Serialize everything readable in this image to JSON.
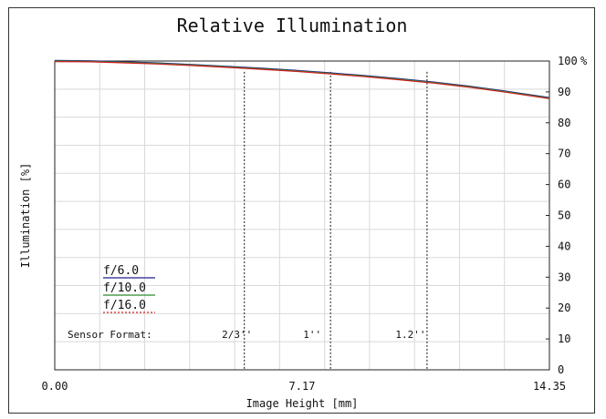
{
  "chart_data": {
    "type": "line",
    "title": "Relative Illumination",
    "xlabel": "Image Height [mm]",
    "ylabel": "Illumination [%]",
    "xlim": [
      0,
      14.35
    ],
    "ylim": [
      0,
      100
    ],
    "x_ticks": [
      "0.00",
      "7.17",
      "14.35"
    ],
    "y_ticks": [
      "0",
      "10",
      "20",
      "30",
      "40",
      "50",
      "60",
      "70",
      "80",
      "90",
      "100"
    ],
    "y_unit": "%",
    "grid": true,
    "legend_placement": "lower-left",
    "x": [
      0,
      1,
      2,
      3,
      4,
      5,
      6,
      7,
      8,
      9,
      10,
      11,
      12,
      13,
      14.35
    ],
    "series": [
      {
        "name": "f/6.0",
        "color": "#1f1f8f",
        "values": [
          100,
          99.9,
          99.6,
          99.2,
          98.7,
          98.1,
          97.5,
          96.8,
          96.0,
          95.1,
          94.1,
          93.0,
          91.7,
          90.2,
          88.0
        ]
      },
      {
        "name": "f/10.0",
        "color": "#2e8b2e",
        "values": [
          100,
          99.9,
          99.6,
          99.2,
          98.7,
          98.1,
          97.5,
          96.8,
          96.0,
          95.1,
          94.1,
          93.0,
          91.7,
          90.2,
          88.0
        ]
      },
      {
        "name": "f/16.0",
        "color": "#d02020",
        "values": [
          100,
          99.9,
          99.6,
          99.2,
          98.7,
          98.1,
          97.5,
          96.8,
          96.0,
          95.1,
          94.1,
          93.0,
          91.7,
          90.2,
          88.0
        ]
      }
    ],
    "sensor_format": {
      "label": "Sensor Format:",
      "markers": [
        {
          "label": "2/3''",
          "x": 5.5
        },
        {
          "label": "1''",
          "x": 8.0
        },
        {
          "label": "1.2''",
          "x": 10.8
        }
      ]
    }
  }
}
